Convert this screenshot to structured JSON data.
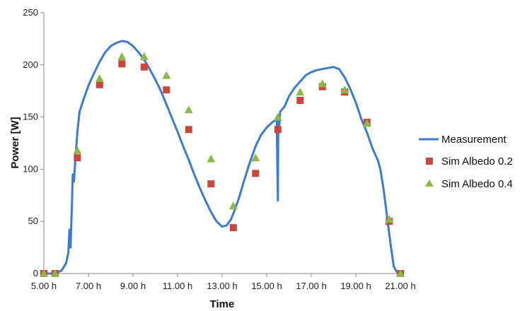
{
  "chart_data": {
    "type": "line",
    "title": "",
    "xlabel": "Time",
    "ylabel": "Power [W]",
    "xlim": [
      5,
      21
    ],
    "ylim": [
      0,
      250
    ],
    "x_ticks": [
      5,
      7,
      9,
      11,
      13,
      15,
      17,
      19,
      21
    ],
    "x_tick_labels": [
      "5.00 h",
      "7.00 h",
      "9.00 h",
      "11.00 h",
      "13.00 h",
      "15.00 h",
      "17.00 h",
      "19.00 h",
      "21.00 h"
    ],
    "y_ticks": [
      0,
      50,
      100,
      150,
      200,
      250
    ],
    "y_tick_labels": [
      "0",
      "50",
      "100",
      "150",
      "200",
      "250"
    ],
    "grid": false,
    "legend_position": "right",
    "series": [
      {
        "name": "Measurement",
        "type": "line",
        "color": "#3d7cc9",
        "x": [
          5.0,
          5.5,
          5.8,
          6.0,
          6.1,
          6.15,
          6.2,
          6.22,
          6.25,
          6.3,
          6.35,
          6.4,
          6.45,
          6.5,
          6.6,
          6.75,
          7.0,
          7.25,
          7.5,
          7.75,
          8.0,
          8.25,
          8.5,
          8.75,
          9.0,
          9.25,
          9.5,
          9.75,
          10.0,
          10.25,
          10.5,
          10.75,
          11.0,
          11.25,
          11.5,
          11.75,
          12.0,
          12.25,
          12.5,
          12.75,
          13.0,
          13.2,
          13.4,
          13.55,
          13.75,
          14.0,
          14.25,
          14.5,
          14.75,
          15.0,
          15.25,
          15.45,
          15.5,
          15.52,
          15.55,
          15.58,
          15.6,
          15.8,
          16.0,
          16.25,
          16.5,
          16.75,
          17.0,
          17.25,
          17.5,
          17.75,
          18.0,
          18.25,
          18.5,
          18.75,
          19.0,
          19.25,
          19.5,
          19.75,
          20.0,
          20.1,
          20.25,
          20.4,
          20.55,
          20.7,
          20.8,
          20.9,
          21.0
        ],
        "y": [
          0,
          0,
          3,
          10,
          20,
          42,
          25,
          40,
          60,
          95,
          88,
          105,
          120,
          135,
          155,
          165,
          180,
          192,
          203,
          212,
          218,
          221,
          223,
          222,
          218,
          212,
          205,
          196,
          186,
          175,
          162,
          149,
          136,
          122,
          109,
          95,
          82,
          70,
          59,
          50,
          45,
          46,
          52,
          60,
          72,
          90,
          107,
          122,
          133,
          140,
          145,
          148,
          70,
          150,
          140,
          145,
          155,
          160,
          170,
          178,
          184,
          190,
          193,
          195,
          196,
          197,
          198,
          196,
          188,
          177,
          164,
          148,
          135,
          120,
          108,
          100,
          80,
          55,
          30,
          7,
          3,
          0,
          0
        ]
      },
      {
        "name": "Sim Albedo 0.2",
        "type": "scatter",
        "marker": "square",
        "color": "#c9473c",
        "x": [
          5.0,
          5.5,
          6.5,
          7.5,
          8.5,
          9.5,
          10.5,
          11.5,
          12.5,
          13.5,
          14.5,
          15.5,
          16.5,
          17.5,
          18.5,
          19.5,
          20.5,
          21.0
        ],
        "y": [
          0,
          0,
          111,
          181,
          201,
          198,
          176,
          138,
          86,
          44,
          96,
          138,
          166,
          179,
          174,
          145,
          50,
          0
        ]
      },
      {
        "name": "Sim Albedo 0.4",
        "type": "scatter",
        "marker": "triangle",
        "color": "#8db848",
        "x": [
          5.0,
          5.5,
          6.5,
          7.5,
          8.5,
          9.5,
          10.5,
          11.5,
          12.5,
          13.5,
          14.5,
          15.5,
          16.5,
          17.5,
          18.5,
          19.5,
          20.5,
          21.0
        ],
        "y": [
          0,
          0,
          118,
          187,
          208,
          208,
          190,
          157,
          110,
          65,
          111,
          150,
          174,
          182,
          176,
          144,
          52,
          0
        ]
      }
    ]
  }
}
